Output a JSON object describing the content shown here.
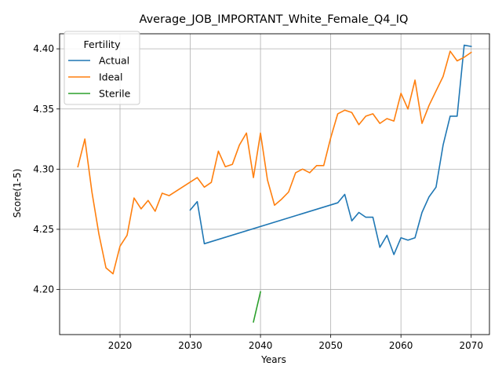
{
  "chart_data": {
    "type": "line",
    "title": "Average_JOB_IMPORTANT_White_Female_Q4_IQ",
    "xlabel": "Years",
    "ylabel": "Score(1-5)",
    "xlim": [
      2011.4,
      2072.6
    ],
    "ylim": [
      4.1625,
      4.4125
    ],
    "xticks": [
      2020,
      2030,
      2040,
      2050,
      2060,
      2070
    ],
    "yticks": [
      4.2,
      4.25,
      4.3,
      4.35,
      4.4
    ],
    "ytick_labels": [
      "4.20",
      "4.25",
      "4.30",
      "4.35",
      "4.40"
    ],
    "grid": true,
    "legend": {
      "title": "Fertility",
      "position": "top-left"
    },
    "series": [
      {
        "name": "Actual",
        "color": "#1f77b4",
        "x": [
          2030,
          2031,
          2032,
          2051,
          2052,
          2053,
          2054,
          2055,
          2056,
          2057,
          2058,
          2059,
          2060,
          2061,
          2062,
          2063,
          2064,
          2065,
          2066,
          2067,
          2068,
          2069,
          2070
        ],
        "values": [
          4.266,
          4.273,
          4.238,
          4.272,
          4.279,
          4.257,
          4.264,
          4.26,
          4.26,
          4.235,
          4.245,
          4.229,
          4.243,
          4.241,
          4.243,
          4.264,
          4.277,
          4.285,
          4.32,
          4.344,
          4.344,
          4.403,
          4.402
        ]
      },
      {
        "name": "Ideal",
        "color": "#ff7f0e",
        "x": [
          2014,
          2015,
          2016,
          2017,
          2018,
          2019,
          2020,
          2021,
          2022,
          2023,
          2024,
          2025,
          2026,
          2027,
          2031,
          2032,
          2033,
          2034,
          2035,
          2036,
          2037,
          2038,
          2039,
          2040,
          2041,
          2042,
          2043,
          2044,
          2045,
          2046,
          2047,
          2048,
          2049,
          2050,
          2051,
          2052,
          2053,
          2054,
          2055,
          2056,
          2057,
          2058,
          2059,
          2060,
          2061,
          2062,
          2063,
          2064,
          2065,
          2066,
          2067,
          2068,
          2069,
          2070
        ],
        "values": [
          4.302,
          4.325,
          4.281,
          4.246,
          4.218,
          4.213,
          4.236,
          4.245,
          4.276,
          4.267,
          4.274,
          4.265,
          4.28,
          4.278,
          4.293,
          4.285,
          4.289,
          4.315,
          4.302,
          4.304,
          4.32,
          4.33,
          4.293,
          4.33,
          4.291,
          4.27,
          4.275,
          4.281,
          4.297,
          4.3,
          4.297,
          4.303,
          4.303,
          4.326,
          4.346,
          4.349,
          4.347,
          4.337,
          4.344,
          4.346,
          4.338,
          4.342,
          4.34,
          4.363,
          4.35,
          4.374,
          4.338,
          4.353,
          4.365,
          4.377,
          4.398,
          4.39,
          4.393,
          4.397
        ]
      },
      {
        "name": "Sterile",
        "color": "#2ca02c",
        "x": [
          2039,
          2040
        ],
        "values": [
          4.173,
          4.198
        ]
      }
    ]
  }
}
